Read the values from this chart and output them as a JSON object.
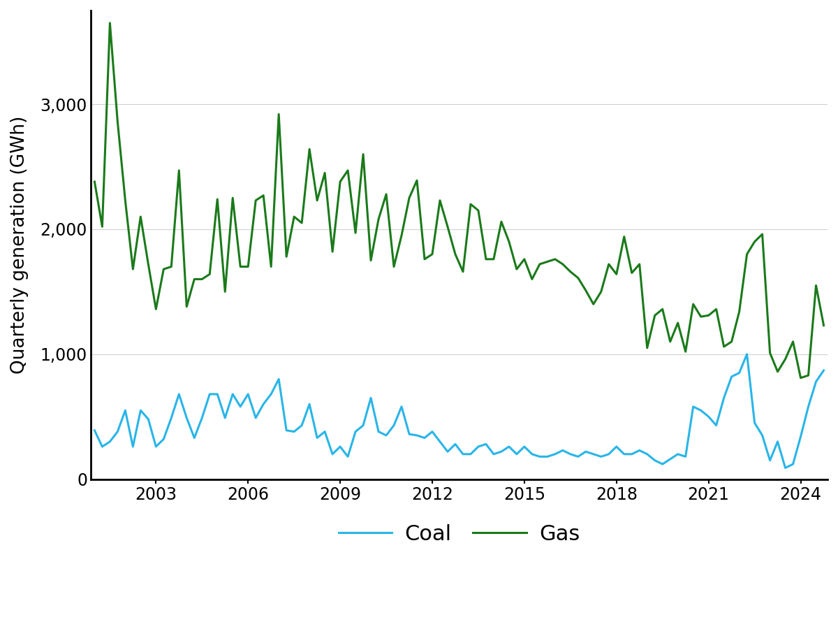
{
  "title": "",
  "ylabel": "Quarterly generation (GWh)",
  "xlabel": "",
  "coal_color": "#29B5E8",
  "gas_color": "#1a7a1a",
  "line_width": 2.2,
  "ylim": [
    0,
    3750
  ],
  "yticks": [
    0,
    1000,
    2000,
    3000
  ],
  "ytick_labels": [
    "0",
    "1,000",
    "2,000",
    "3,000"
  ],
  "background_color": "#ffffff",
  "grid_color": "#d0d0d0",
  "legend_labels": [
    "Coal",
    "Gas"
  ],
  "coal": [
    390,
    260,
    300,
    380,
    550,
    260,
    550,
    480,
    260,
    320,
    490,
    680,
    490,
    330,
    490,
    680,
    680,
    490,
    680,
    580,
    680,
    490,
    600,
    680,
    800,
    390,
    380,
    430,
    600,
    330,
    380,
    200,
    260,
    180,
    380,
    430,
    650,
    380,
    350,
    430,
    580,
    360,
    350,
    330,
    380,
    300,
    220,
    280,
    200,
    200,
    260,
    280,
    200,
    220,
    260,
    200,
    260,
    200,
    180,
    180,
    200,
    230,
    200,
    180,
    220,
    200,
    180,
    200,
    260,
    200,
    200,
    230,
    200,
    150,
    120,
    160,
    200,
    180,
    580,
    550,
    500,
    430,
    650,
    820,
    850,
    1000,
    450,
    350,
    150,
    300,
    90,
    120,
    340,
    580,
    780,
    870
  ],
  "gas": [
    2380,
    2020,
    3650,
    2860,
    2230,
    1680,
    2100,
    1720,
    1360,
    1680,
    1700,
    2470,
    1380,
    1600,
    1600,
    1640,
    2240,
    1500,
    2250,
    1700,
    1700,
    2230,
    2270,
    1700,
    2920,
    1780,
    2100,
    2050,
    2640,
    2230,
    2450,
    1820,
    2380,
    2470,
    1970,
    2600,
    1750,
    2080,
    2280,
    1700,
    1950,
    2250,
    2390,
    1760,
    1800,
    2230,
    2020,
    1800,
    1660,
    2200,
    2150,
    1760,
    1760,
    2060,
    1900,
    1680,
    1760,
    1600,
    1720,
    1740,
    1760,
    1720,
    1660,
    1610,
    1510,
    1400,
    1500,
    1720,
    1640,
    1940,
    1650,
    1720,
    1050,
    1310,
    1360,
    1100,
    1250,
    1020,
    1400,
    1300,
    1310,
    1360,
    1060,
    1100,
    1340,
    1800,
    1900,
    1960,
    1010,
    860,
    960,
    1100,
    810,
    830,
    1550,
    1230
  ],
  "xtick_years": [
    2003,
    2006,
    2009,
    2012,
    2015,
    2018,
    2021,
    2024
  ],
  "xtick_positions": [
    8,
    20,
    32,
    44,
    56,
    68,
    80,
    92
  ],
  "n_quarters": 96
}
